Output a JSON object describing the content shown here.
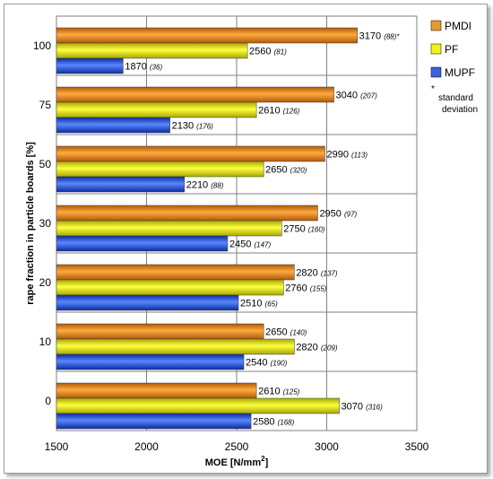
{
  "chart_data": {
    "type": "bar",
    "orientation": "horizontal",
    "xlabel": "MOE [N/mm²]",
    "ylabel": "rape fraction in particle boards [%]",
    "xlim": [
      1500,
      3500
    ],
    "xticks": [
      "1500",
      "2000",
      "2500",
      "3000",
      "3500"
    ],
    "categories": [
      "100",
      "75",
      "50",
      "30",
      "20",
      "10",
      "0"
    ],
    "series": [
      {
        "name": "PMDI",
        "color": "#e69a2e",
        "values": [
          3170,
          3040,
          2990,
          2950,
          2820,
          2650,
          2610
        ],
        "sd": [
          "88",
          "207",
          "113",
          "97",
          "137",
          "140",
          "125"
        ]
      },
      {
        "name": "PF",
        "color": "#f2f21a",
        "values": [
          2560,
          2610,
          2650,
          2750,
          2760,
          2820,
          3070
        ],
        "sd": [
          "81",
          "126",
          "320",
          "160",
          "155",
          "209",
          "316"
        ]
      },
      {
        "name": "MUPF",
        "color": "#3a63e0",
        "values": [
          1870,
          2130,
          2210,
          2450,
          2510,
          2540,
          2580
        ],
        "sd": [
          "36",
          "176",
          "88",
          "147",
          "65",
          "190",
          "168"
        ]
      }
    ],
    "grid": true,
    "legend_position": "right",
    "footnote_marker": "*",
    "footnote_text": [
      "standard",
      "deviation"
    ]
  }
}
